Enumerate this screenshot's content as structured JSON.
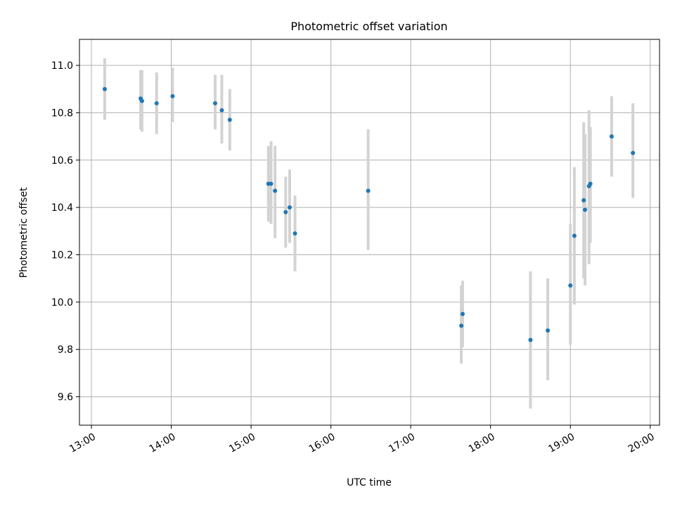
{
  "chart_data": {
    "type": "scatter",
    "title": "Photometric offset variation",
    "xlabel": "UTC time",
    "ylabel": "Photometric offset",
    "x_ticks": [
      "13:00",
      "14:00",
      "15:00",
      "16:00",
      "17:00",
      "18:00",
      "19:00",
      "20:00"
    ],
    "y_ticks": [
      "9.6",
      "9.8",
      "10.0",
      "10.2",
      "10.4",
      "10.6",
      "10.8",
      "11.0"
    ],
    "xlim": [
      "12:51",
      "20:07"
    ],
    "ylim": [
      9.48,
      11.11
    ],
    "grid": true,
    "legend": "none",
    "colors": {
      "point": "#1f77b4",
      "errorbar": "#d3d3d3",
      "grid": "#b0b0b0"
    },
    "series": [
      {
        "points": [
          {
            "x": "13:10",
            "y": 10.9,
            "ymin": 10.77,
            "ymax": 11.03
          },
          {
            "x": "13:37",
            "y": 10.86,
            "ymin": 10.73,
            "ymax": 10.98
          },
          {
            "x": "13:38",
            "y": 10.85,
            "ymin": 10.72,
            "ymax": 10.98
          },
          {
            "x": "13:49",
            "y": 10.84,
            "ymin": 10.71,
            "ymax": 10.97
          },
          {
            "x": "14:01",
            "y": 10.87,
            "ymin": 10.76,
            "ymax": 10.99
          },
          {
            "x": "14:33",
            "y": 10.84,
            "ymin": 10.73,
            "ymax": 10.96
          },
          {
            "x": "14:38",
            "y": 10.81,
            "ymin": 10.67,
            "ymax": 10.96
          },
          {
            "x": "14:44",
            "y": 10.77,
            "ymin": 10.64,
            "ymax": 10.9
          },
          {
            "x": "15:13",
            "y": 10.5,
            "ymin": 10.34,
            "ymax": 10.66
          },
          {
            "x": "15:15",
            "y": 10.5,
            "ymin": 10.33,
            "ymax": 10.68
          },
          {
            "x": "15:18",
            "y": 10.47,
            "ymin": 10.27,
            "ymax": 10.66
          },
          {
            "x": "15:26",
            "y": 10.38,
            "ymin": 10.23,
            "ymax": 10.53
          },
          {
            "x": "15:29",
            "y": 10.4,
            "ymin": 10.25,
            "ymax": 10.56
          },
          {
            "x": "15:33",
            "y": 10.29,
            "ymin": 10.13,
            "ymax": 10.45
          },
          {
            "x": "16:28",
            "y": 10.47,
            "ymin": 10.22,
            "ymax": 10.73
          },
          {
            "x": "17:38",
            "y": 9.9,
            "ymin": 9.74,
            "ymax": 10.07
          },
          {
            "x": "17:39",
            "y": 9.95,
            "ymin": 9.81,
            "ymax": 10.09
          },
          {
            "x": "18:30",
            "y": 9.84,
            "ymin": 9.55,
            "ymax": 10.13
          },
          {
            "x": "18:43",
            "y": 9.88,
            "ymin": 9.67,
            "ymax": 10.1
          },
          {
            "x": "19:00",
            "y": 10.07,
            "ymin": 9.82,
            "ymax": 10.33
          },
          {
            "x": "19:03",
            "y": 10.28,
            "ymin": 9.99,
            "ymax": 10.57
          },
          {
            "x": "19:10",
            "y": 10.43,
            "ymin": 10.1,
            "ymax": 10.76
          },
          {
            "x": "19:11",
            "y": 10.39,
            "ymin": 10.07,
            "ymax": 10.71
          },
          {
            "x": "19:14",
            "y": 10.49,
            "ymin": 10.16,
            "ymax": 10.81
          },
          {
            "x": "19:15",
            "y": 10.5,
            "ymin": 10.25,
            "ymax": 10.74
          },
          {
            "x": "19:31",
            "y": 10.7,
            "ymin": 10.53,
            "ymax": 10.87
          },
          {
            "x": "19:47",
            "y": 10.63,
            "ymin": 10.44,
            "ymax": 10.84
          }
        ]
      }
    ]
  }
}
